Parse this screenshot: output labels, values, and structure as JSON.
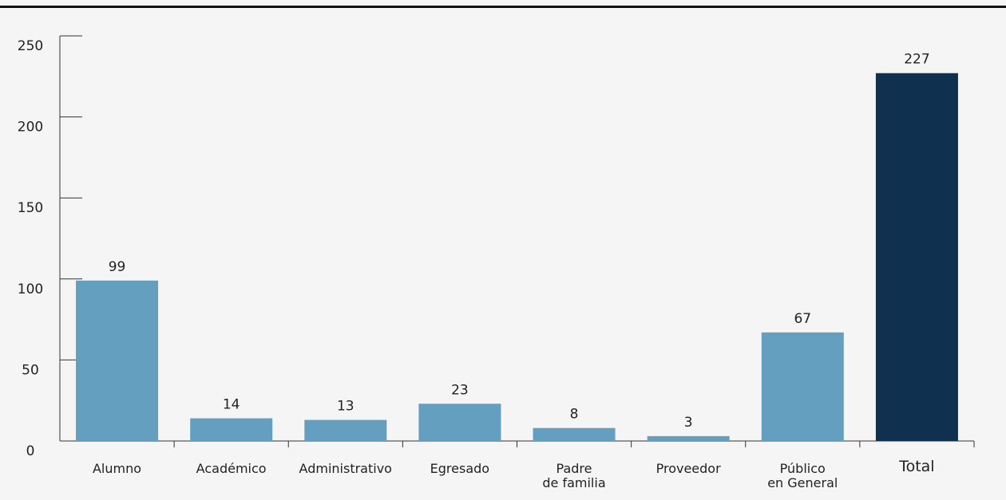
{
  "chart_data": {
    "type": "bar",
    "categories": [
      "Alumno",
      "Académico",
      "Administrativo",
      "Egresado",
      "Padre\nde familia",
      "Proveedor",
      "Público\nen General",
      "Total"
    ],
    "values": [
      99,
      14,
      13,
      23,
      8,
      3,
      67,
      227
    ],
    "colors": [
      "#659fbf",
      "#659fbf",
      "#659fbf",
      "#659fbf",
      "#659fbf",
      "#659fbf",
      "#659fbf",
      "#10304f"
    ],
    "ylim": [
      0,
      250
    ],
    "yticks": [
      0,
      50,
      100,
      150,
      200,
      250
    ]
  }
}
